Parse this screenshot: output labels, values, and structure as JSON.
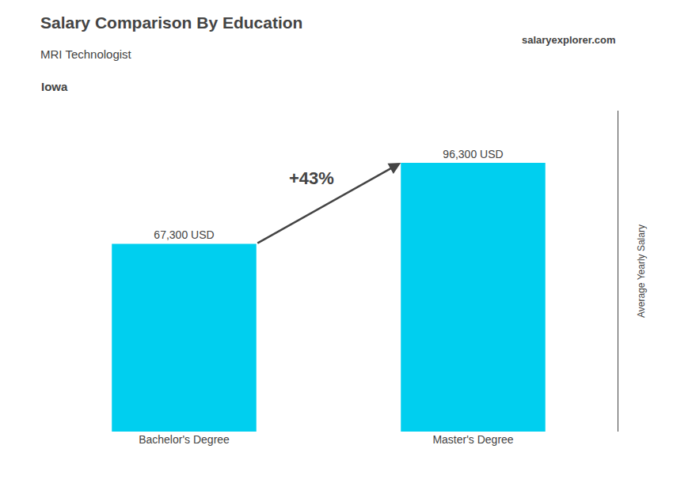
{
  "chart_data": {
    "type": "bar",
    "title": "Salary Comparison By Education",
    "subtitle": "MRI Technologist",
    "annotations": [
      "+43%",
      "Iowa",
      "salaryexplorer.com"
    ],
    "ylabel": "Average Yearly Salary",
    "categories": [
      "Bachelor's Degree",
      "Master's Degree"
    ],
    "values": [
      67300,
      96300
    ],
    "value_labels": [
      "67,300 USD",
      "96,300 USD"
    ],
    "data_labels": true,
    "color": "#00CFEF",
    "ylim": [
      0,
      115000
    ],
    "yticks": [],
    "grid": false,
    "tick_labels": "x"
  }
}
